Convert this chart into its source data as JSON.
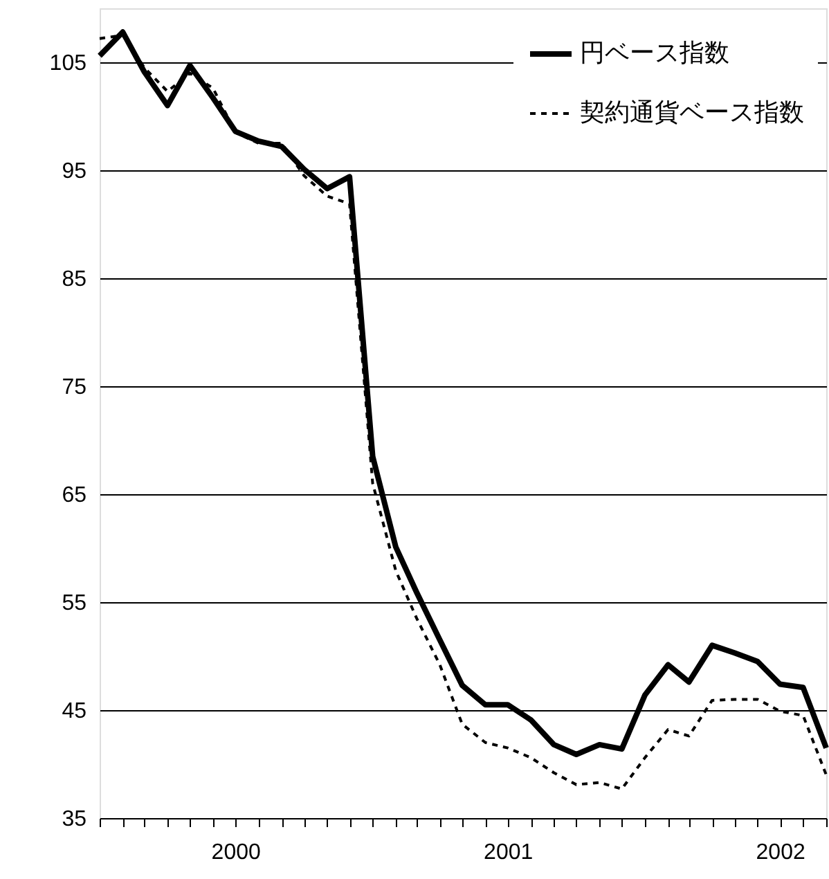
{
  "chart_data": {
    "type": "line",
    "x": [
      "2000-01",
      "2000-02",
      "2000-03",
      "2000-04",
      "2000-05",
      "2000-06",
      "2000-07",
      "2000-08",
      "2000-09",
      "2000-10",
      "2000-11",
      "2000-12",
      "2001-01",
      "2001-02",
      "2001-03",
      "2001-04",
      "2001-05",
      "2001-06",
      "2001-07",
      "2001-08",
      "2001-09",
      "2001-10",
      "2001-11",
      "2001-12",
      "2002-01",
      "2002-02",
      "2002-03",
      "2002-04",
      "2002-05",
      "2002-06",
      "2002-07",
      "2002-08",
      "2002-09"
    ],
    "series": [
      {
        "name": "円ベース指数",
        "color": "#000000",
        "line_style": "solid",
        "values": [
          105.6,
          107.8,
          104.1,
          101.0,
          104.7,
          101.7,
          98.6,
          97.7,
          97.2,
          95.1,
          93.3,
          94.4,
          68.5,
          60.1,
          55.9,
          51.5,
          47.3,
          45.5,
          45.5,
          44.1,
          41.8,
          40.9,
          41.8,
          41.4,
          46.4,
          49.2,
          47.6,
          51.0,
          50.3,
          49.5,
          47.4,
          47.1,
          41.5
        ]
      },
      {
        "name": "契約通貨ベース指数",
        "color": "#000000",
        "line_style": "dashed",
        "values": [
          107.2,
          107.5,
          104.5,
          102.3,
          104.0,
          102.6,
          98.5,
          97.5,
          97.5,
          94.5,
          92.6,
          91.9,
          66.0,
          57.9,
          53.5,
          49.2,
          43.7,
          42.0,
          41.5,
          40.6,
          39.2,
          38.1,
          38.3,
          37.7,
          40.6,
          43.2,
          42.6,
          45.9,
          46.0,
          46.0,
          44.9,
          44.5,
          39.0
        ]
      }
    ],
    "xlim": [
      "2000-01",
      "2002-09"
    ],
    "xticks": [
      {
        "value": "2000-01",
        "label": null
      },
      {
        "value": "2000-02",
        "label": null
      },
      {
        "value": "2000-03",
        "label": null
      },
      {
        "value": "2000-04",
        "label": null
      },
      {
        "value": "2000-05",
        "label": null
      },
      {
        "value": "2000-06",
        "label": null
      },
      {
        "value": "2000-07",
        "label": "2000"
      },
      {
        "value": "2000-08",
        "label": null
      },
      {
        "value": "2000-09",
        "label": null
      },
      {
        "value": "2000-10",
        "label": null
      },
      {
        "value": "2000-11",
        "label": null
      },
      {
        "value": "2000-12",
        "label": null
      },
      {
        "value": "2001-01",
        "label": null
      },
      {
        "value": "2001-02",
        "label": null
      },
      {
        "value": "2001-03",
        "label": null
      },
      {
        "value": "2001-04",
        "label": null
      },
      {
        "value": "2001-05",
        "label": null
      },
      {
        "value": "2001-06",
        "label": null
      },
      {
        "value": "2001-07",
        "label": "2001"
      },
      {
        "value": "2001-08",
        "label": null
      },
      {
        "value": "2001-09",
        "label": null
      },
      {
        "value": "2001-10",
        "label": null
      },
      {
        "value": "2001-11",
        "label": null
      },
      {
        "value": "2001-12",
        "label": null
      },
      {
        "value": "2002-01",
        "label": null
      },
      {
        "value": "2002-02",
        "label": null
      },
      {
        "value": "2002-03",
        "label": null
      },
      {
        "value": "2002-04",
        "label": null
      },
      {
        "value": "2002-05",
        "label": null
      },
      {
        "value": "2002-06",
        "label": null
      },
      {
        "value": "2002-07",
        "label": "2002"
      },
      {
        "value": "2002-08",
        "label": null
      },
      {
        "value": "2002-09",
        "label": null
      }
    ],
    "ylim": [
      35,
      110
    ],
    "yticks": [
      35,
      45,
      55,
      65,
      75,
      85,
      95,
      105
    ],
    "grid": "y",
    "legend": "top right",
    "marker": "none"
  }
}
